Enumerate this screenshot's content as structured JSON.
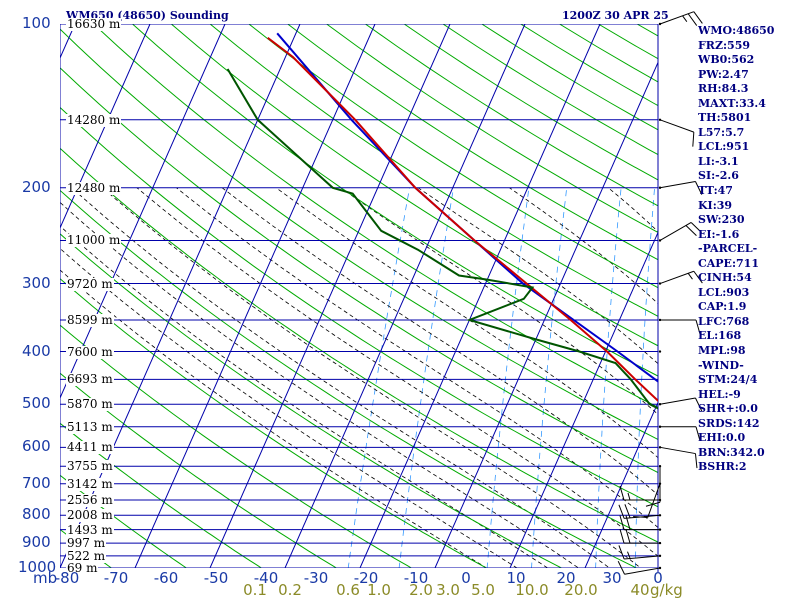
{
  "header": {
    "station_title": "WM650 (48650) Sounding",
    "valid_time": "1200Z 30 APR 25"
  },
  "indices": [
    "WMO:48650",
    "FRZ:559",
    "WB0:562",
    "PW:2.47",
    "RH:84.3",
    "MAXT:33.4",
    "TH:5801",
    "L57:5.7",
    "LCL:951",
    "LI:-3.1",
    "SI:-2.6",
    "TT:47",
    "KI:39",
    "SW:230",
    "EI:-1.6",
    "-PARCEL-",
    "CAPE:711",
    "CINH:54",
    "LCL:903",
    "CAP:1.9",
    "LFC:768",
    "EL:168",
    "MPL:98",
    "-WIND-",
    "STM:24/4",
    "HEL:-9",
    "SHR+:0.0",
    "SRDS:142",
    "EHI:0.0",
    "BRN:342.0",
    "BSHR:2"
  ],
  "colors": {
    "isobar": "#0000aa",
    "isotherm": "#0000aa",
    "dry_adiabat": "#00aa00",
    "moist_adiabat": "#000000",
    "mixing_ratio": "#3399ff",
    "temperature": "#cc0000",
    "dewpoint": "#005500",
    "parcel": "#0000cc",
    "wind_barb": "#000000",
    "axis_text": "#1a3aa6",
    "mixing_text": "#8b8b28",
    "index_text": "#000080"
  },
  "chart_data": {
    "type": "skew-t log-p sounding",
    "ylabel": "mb",
    "xlim": [
      -80,
      0
    ],
    "ylim": [
      1000,
      100
    ],
    "pressure_levels": [
      100,
      200,
      300,
      400,
      500,
      600,
      700,
      800,
      900,
      1000
    ],
    "temperature_ticks": [
      "-80",
      "-70",
      "-60",
      "-50",
      "-40",
      "-30",
      "-20",
      "-10",
      "0",
      "10",
      "20",
      "30",
      "0"
    ],
    "mixing_ratio_labels": [
      "0.1",
      "0.2",
      "0.6",
      "1.0",
      "2.0",
      "3.0",
      "5.0",
      "10.0",
      "20.0",
      "40"
    ],
    "mixing_ratio_unit": "g/kg",
    "height_labels": [
      {
        "p": 100,
        "label": "16630 m"
      },
      {
        "p": 150,
        "label": "14280 m"
      },
      {
        "p": 200,
        "label": "12480 m"
      },
      {
        "p": 250,
        "label": "11000 m"
      },
      {
        "p": 300,
        "label": "9720 m"
      },
      {
        "p": 350,
        "label": "8599 m"
      },
      {
        "p": 400,
        "label": "7600 m"
      },
      {
        "p": 450,
        "label": "6693 m"
      },
      {
        "p": 500,
        "label": "5870 m"
      },
      {
        "p": 550,
        "label": "5113 m"
      },
      {
        "p": 600,
        "label": "4411 m"
      },
      {
        "p": 650,
        "label": "3755 m"
      },
      {
        "p": 700,
        "label": "3142 m"
      },
      {
        "p": 750,
        "label": "2556 m"
      },
      {
        "p": 800,
        "label": "2008 m"
      },
      {
        "p": 850,
        "label": "1493 m"
      },
      {
        "p": 900,
        "label": "997 m"
      },
      {
        "p": 950,
        "label": "522 m"
      },
      {
        "p": 1000,
        "label": "69 m"
      }
    ],
    "temperature_profile": [
      {
        "p": 1004,
        "t": 25.0
      },
      {
        "p": 985,
        "t": 24.0
      },
      {
        "p": 950,
        "t": 21.5
      },
      {
        "p": 925,
        "t": 19.8
      },
      {
        "p": 900,
        "t": 18.0
      },
      {
        "p": 850,
        "t": 15.2
      },
      {
        "p": 800,
        "t": 11.4
      },
      {
        "p": 750,
        "t": 7.8
      },
      {
        "p": 700,
        "t": 4.8
      },
      {
        "p": 650,
        "t": 1.6
      },
      {
        "p": 600,
        "t": -1.6
      },
      {
        "p": 550,
        "t": -5.4
      },
      {
        "p": 500,
        "t": -9.4
      },
      {
        "p": 450,
        "t": -14.4
      },
      {
        "p": 400,
        "t": -19.8
      },
      {
        "p": 350,
        "t": -26.5
      },
      {
        "p": 300,
        "t": -34.5
      },
      {
        "p": 250,
        "t": -44.0
      },
      {
        "p": 200,
        "t": -55.0
      },
      {
        "p": 150,
        "t": -67.0
      },
      {
        "p": 115,
        "t": -79.0
      },
      {
        "p": 106,
        "t": -83.5
      }
    ],
    "dewpoint_profile": [
      {
        "p": 1004,
        "t": 21.5
      },
      {
        "p": 985,
        "t": 21.5
      },
      {
        "p": 950,
        "t": 20.0
      },
      {
        "p": 925,
        "t": 19.0
      },
      {
        "p": 900,
        "t": 17.2
      },
      {
        "p": 850,
        "t": 13.8
      },
      {
        "p": 800,
        "t": 10.0
      },
      {
        "p": 750,
        "t": 6.0
      },
      {
        "p": 700,
        "t": 2.0
      },
      {
        "p": 650,
        "t": -1.0
      },
      {
        "p": 600,
        "t": -3.0
      },
      {
        "p": 550,
        "t": -6.5
      },
      {
        "p": 520,
        "t": -8.0
      },
      {
        "p": 500,
        "t": -11.0
      },
      {
        "p": 450,
        "t": -15.0
      },
      {
        "p": 420,
        "t": -18.0
      },
      {
        "p": 400,
        "t": -23.5
      },
      {
        "p": 380,
        "t": -30.0
      },
      {
        "p": 350,
        "t": -40.0
      },
      {
        "p": 320,
        "t": -34.0
      },
      {
        "p": 305,
        "t": -33.5
      },
      {
        "p": 295,
        "t": -40.0
      },
      {
        "p": 290,
        "t": -44.0
      },
      {
        "p": 260,
        "t": -51.0
      },
      {
        "p": 240,
        "t": -57.0
      },
      {
        "p": 205,
        "t": -63.0
      },
      {
        "p": 200,
        "t": -66.0
      },
      {
        "p": 190,
        "t": -68.5
      },
      {
        "p": 150,
        "t": -80.0
      },
      {
        "p": 121,
        "t": -87.0
      }
    ],
    "parcel_profile": [
      {
        "p": 1000,
        "t": 29.5
      },
      {
        "p": 950,
        "t": 24.0
      },
      {
        "p": 903,
        "t": 19.5
      },
      {
        "p": 850,
        "t": 17.3
      },
      {
        "p": 800,
        "t": 15.0
      },
      {
        "p": 700,
        "t": 9.8
      },
      {
        "p": 600,
        "t": 3.0
      },
      {
        "p": 500,
        "t": -5.8
      },
      {
        "p": 400,
        "t": -18.4
      },
      {
        "p": 300,
        "t": -35.0
      },
      {
        "p": 250,
        "t": -44.0
      },
      {
        "p": 200,
        "t": -55.0
      },
      {
        "p": 150,
        "t": -67.5
      },
      {
        "p": 104,
        "t": -82.5
      }
    ],
    "winds": [
      {
        "p": 1000,
        "dir": 260,
        "spd": 10
      },
      {
        "p": 950,
        "dir": 265,
        "spd": 15
      },
      {
        "p": 900,
        "dir": 270,
        "spd": 20
      },
      {
        "p": 850,
        "dir": 270,
        "spd": 20
      },
      {
        "p": 800,
        "dir": 265,
        "spd": 20
      },
      {
        "p": 750,
        "dir": 270,
        "spd": 15
      },
      {
        "p": 700,
        "dir": 200,
        "spd": 10
      },
      {
        "p": 650,
        "dir": 180,
        "spd": 10
      },
      {
        "p": 600,
        "dir": 100,
        "spd": 10
      },
      {
        "p": 550,
        "dir": 90,
        "spd": 10
      },
      {
        "p": 500,
        "dir": 80,
        "spd": 10
      },
      {
        "p": 400,
        "dir": 360,
        "spd": 0
      },
      {
        "p": 350,
        "dir": 90,
        "spd": 10
      },
      {
        "p": 300,
        "dir": 70,
        "spd": 15
      },
      {
        "p": 250,
        "dir": 60,
        "spd": 20
      },
      {
        "p": 200,
        "dir": 80,
        "spd": 10
      },
      {
        "p": 150,
        "dir": 110,
        "spd": 10
      },
      {
        "p": 100,
        "dir": 70,
        "spd": 25
      }
    ],
    "grid": true
  }
}
